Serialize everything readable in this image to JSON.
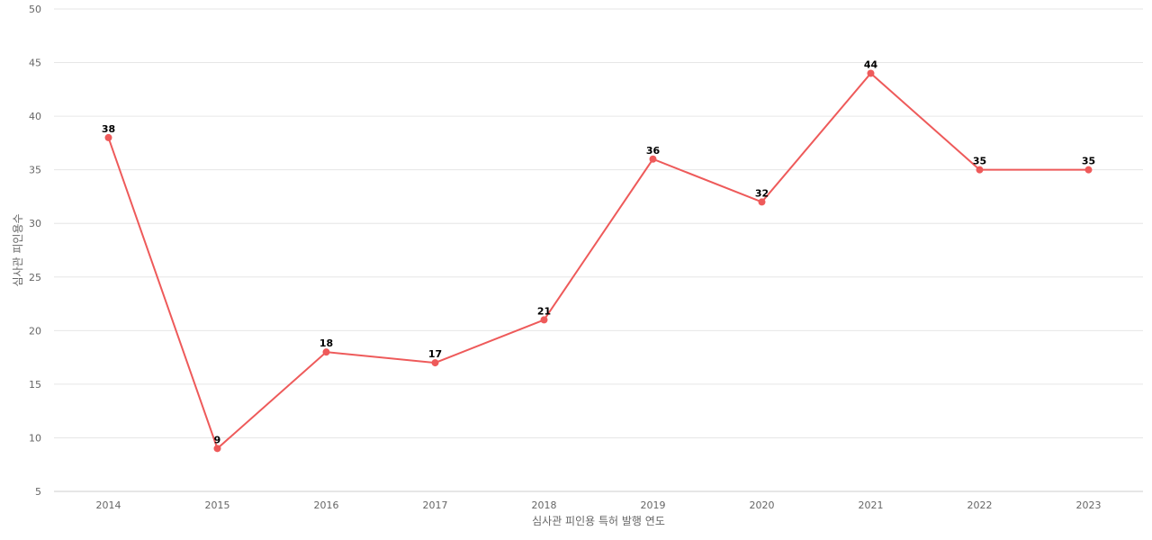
{
  "chart_data": {
    "type": "line",
    "title": "",
    "xlabel": "심사관 피인용 특허 발행 연도",
    "ylabel": "심사관 피인용수",
    "x": [
      "2014",
      "2015",
      "2016",
      "2017",
      "2018",
      "2019",
      "2020",
      "2021",
      "2022",
      "2023"
    ],
    "series": [
      {
        "values": [
          38,
          9,
          18,
          17,
          21,
          36,
          32,
          44,
          35,
          35
        ]
      }
    ],
    "ylim": [
      5,
      50
    ],
    "yticks": [
      5,
      10,
      15,
      20,
      25,
      30,
      35,
      40,
      45,
      50
    ],
    "grid": true,
    "legend": "none",
    "color": "#ee5a5a"
  }
}
